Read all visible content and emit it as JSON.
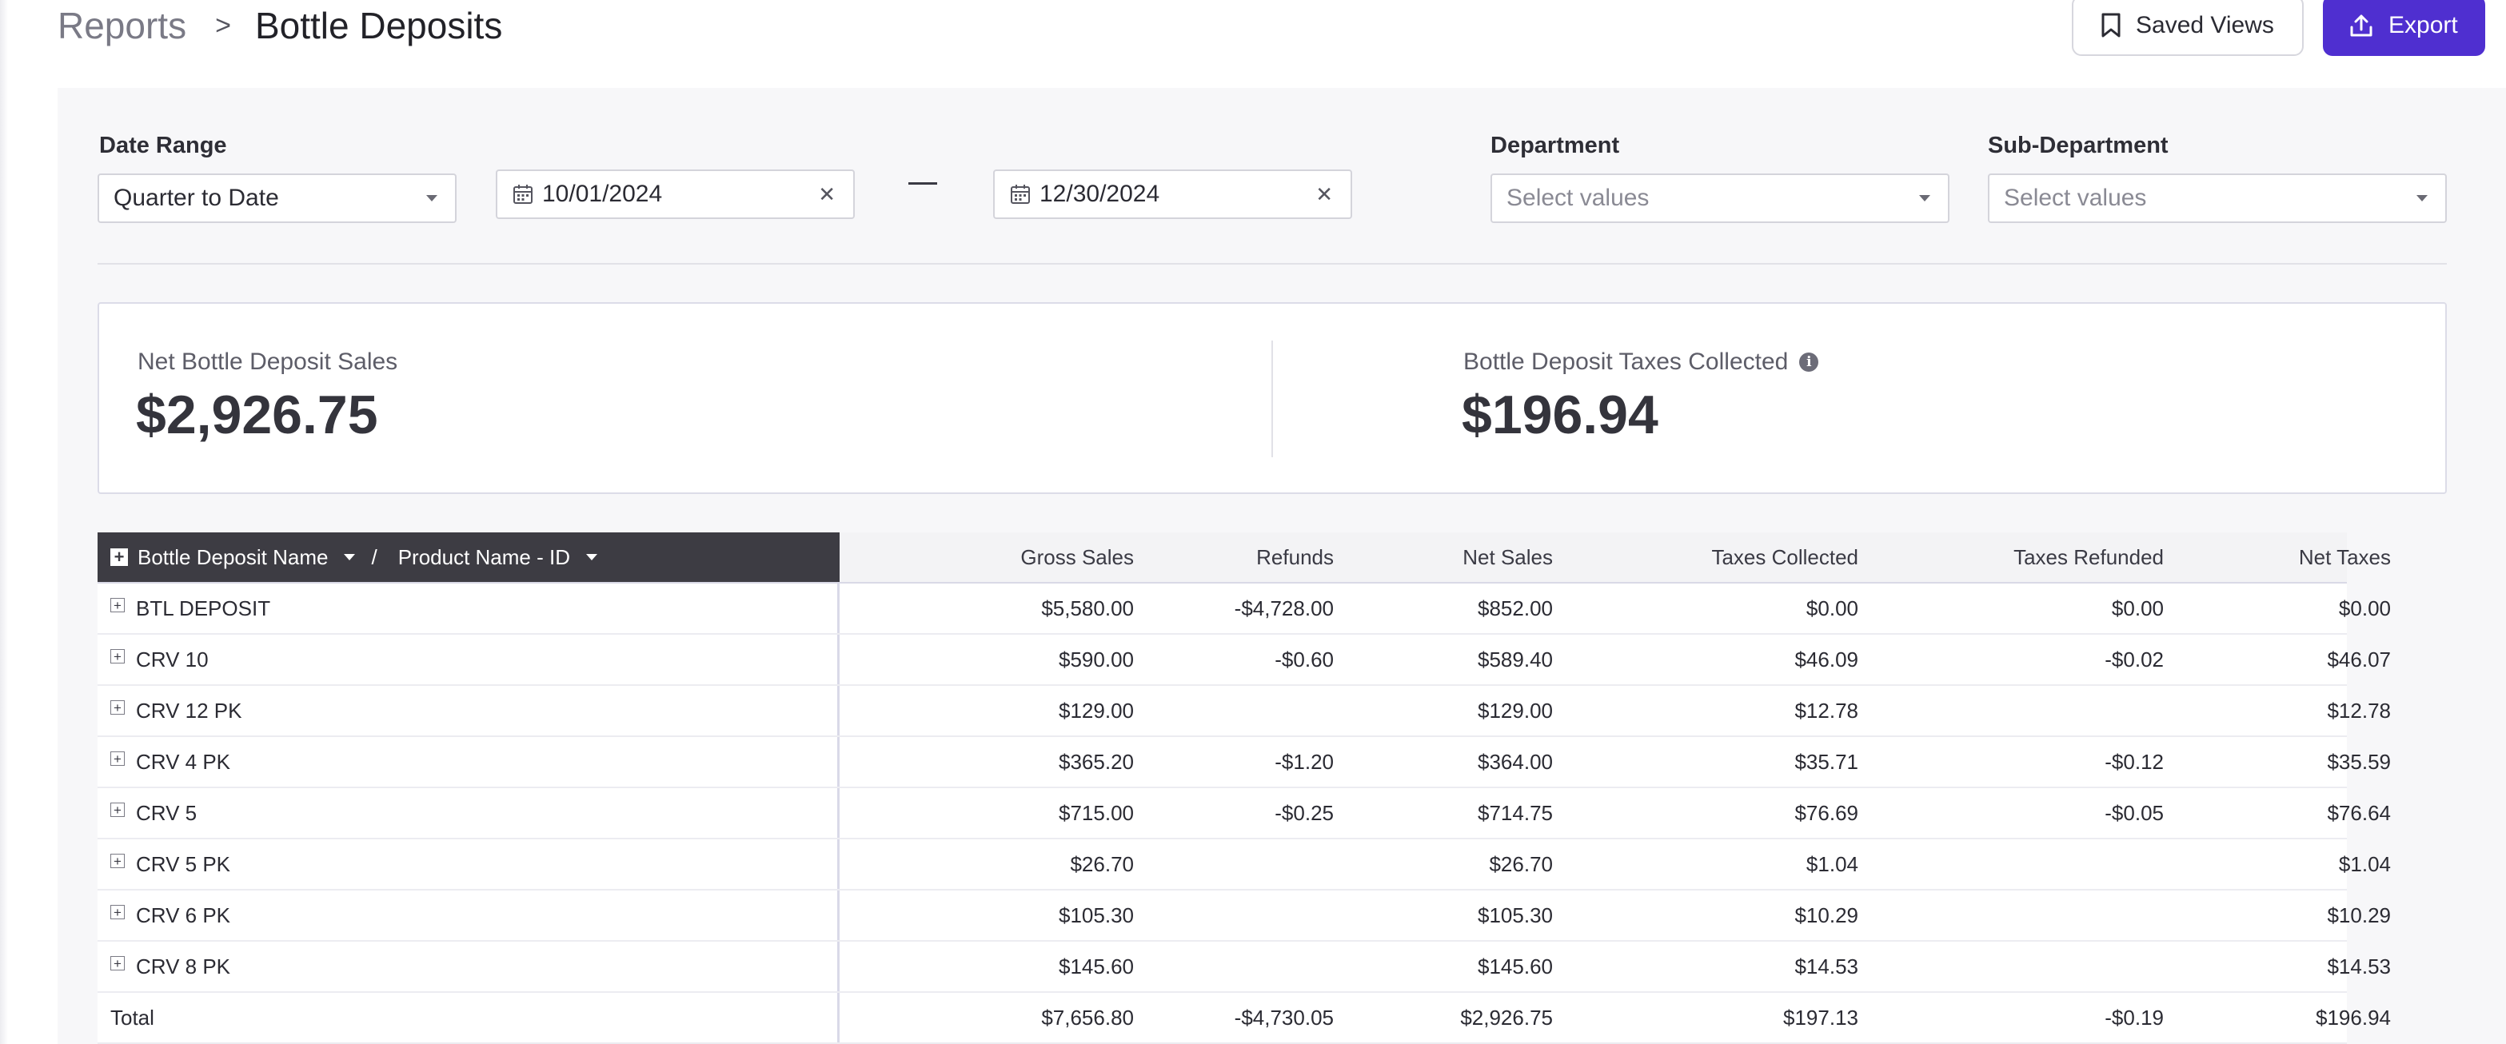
{
  "breadcrumb": {
    "parent": "Reports",
    "separator": ">",
    "current": "Bottle Deposits"
  },
  "toolbar": {
    "saved_views_label": "Saved Views",
    "export_label": "Export",
    "accent_color": "#4f2fd0"
  },
  "filters": {
    "date_range_label": "Date Range",
    "date_range_value": "Quarter to Date",
    "start_date": "10/01/2024",
    "end_date": "12/30/2024",
    "department_label": "Department",
    "department_placeholder": "Select values",
    "sub_department_label": "Sub-Department",
    "sub_department_placeholder": "Select values"
  },
  "summary": {
    "net_sales_label": "Net Bottle Deposit Sales",
    "net_sales_value": "$2,926.75",
    "taxes_label": "Bottle Deposit Taxes Collected",
    "taxes_value": "$196.94"
  },
  "table": {
    "group_header": {
      "first": "Bottle Deposit Name",
      "slash": "/",
      "second": "Product Name - ID"
    },
    "columns": [
      "Gross Sales",
      "Refunds",
      "Net Sales",
      "Taxes Collected",
      "Taxes Refunded",
      "Net Taxes"
    ],
    "rows": [
      {
        "name": "BTL DEPOSIT",
        "gross": "$5,580.00",
        "refunds": "-$4,728.00",
        "net": "$852.00",
        "tax_collected": "$0.00",
        "tax_refunded": "$0.00",
        "net_tax": "$0.00"
      },
      {
        "name": "CRV 10",
        "gross": "$590.00",
        "refunds": "-$0.60",
        "net": "$589.40",
        "tax_collected": "$46.09",
        "tax_refunded": "-$0.02",
        "net_tax": "$46.07"
      },
      {
        "name": "CRV 12 PK",
        "gross": "$129.00",
        "refunds": "",
        "net": "$129.00",
        "tax_collected": "$12.78",
        "tax_refunded": "",
        "net_tax": "$12.78"
      },
      {
        "name": "CRV 4 PK",
        "gross": "$365.20",
        "refunds": "-$1.20",
        "net": "$364.00",
        "tax_collected": "$35.71",
        "tax_refunded": "-$0.12",
        "net_tax": "$35.59"
      },
      {
        "name": "CRV 5",
        "gross": "$715.00",
        "refunds": "-$0.25",
        "net": "$714.75",
        "tax_collected": "$76.69",
        "tax_refunded": "-$0.05",
        "net_tax": "$76.64"
      },
      {
        "name": "CRV 5 PK",
        "gross": "$26.70",
        "refunds": "",
        "net": "$26.70",
        "tax_collected": "$1.04",
        "tax_refunded": "",
        "net_tax": "$1.04"
      },
      {
        "name": "CRV 6 PK",
        "gross": "$105.30",
        "refunds": "",
        "net": "$105.30",
        "tax_collected": "$10.29",
        "tax_refunded": "",
        "net_tax": "$10.29"
      },
      {
        "name": "CRV 8 PK",
        "gross": "$145.60",
        "refunds": "",
        "net": "$145.60",
        "tax_collected": "$14.53",
        "tax_refunded": "",
        "net_tax": "$14.53"
      }
    ],
    "total": {
      "name": "Total",
      "gross": "$7,656.80",
      "refunds": "-$4,730.05",
      "net": "$2,926.75",
      "tax_collected": "$197.13",
      "tax_refunded": "-$0.19",
      "net_tax": "$196.94"
    }
  }
}
